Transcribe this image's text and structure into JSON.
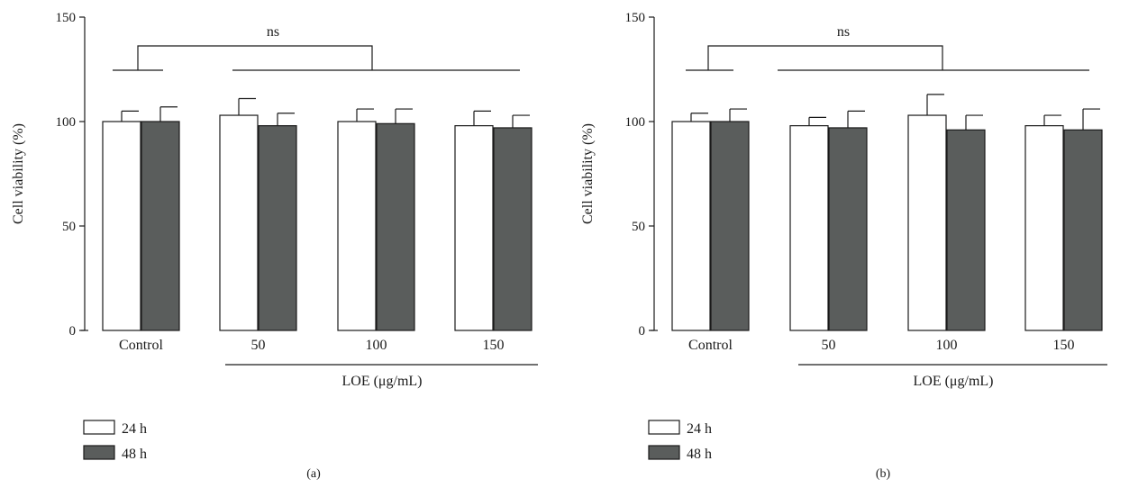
{
  "chart_data": [
    {
      "type": "bar",
      "panel_label": "(a)",
      "ylabel": "Cell viability (%)",
      "xlabel": "LOE (μg/mL)",
      "ylim": [
        0,
        150
      ],
      "yticks": [
        0,
        50,
        100,
        150
      ],
      "categories": [
        "Control",
        "50",
        "100",
        "150"
      ],
      "series": [
        {
          "name": "24 h",
          "values": [
            100,
            103,
            100,
            98
          ],
          "errors": [
            5,
            8,
            6,
            7
          ],
          "color": "#ffffff"
        },
        {
          "name": "48 h",
          "values": [
            100,
            98,
            99,
            97
          ],
          "errors": [
            7,
            6,
            7,
            6
          ],
          "color": "#5a5d5c"
        }
      ],
      "annotation": "ns",
      "legend_position": "bottom-left"
    },
    {
      "type": "bar",
      "panel_label": "(b)",
      "ylabel": "Cell viability (%)",
      "xlabel": "LOE (μg/mL)",
      "ylim": [
        0,
        150
      ],
      "yticks": [
        0,
        50,
        100,
        150
      ],
      "categories": [
        "Control",
        "50",
        "100",
        "150"
      ],
      "series": [
        {
          "name": "24 h",
          "values": [
            100,
            98,
            103,
            98
          ],
          "errors": [
            4,
            4,
            10,
            5
          ],
          "color": "#ffffff"
        },
        {
          "name": "48 h",
          "values": [
            100,
            97,
            96,
            96
          ],
          "errors": [
            6,
            8,
            7,
            10
          ],
          "color": "#5a5d5c"
        }
      ],
      "annotation": "ns",
      "legend_position": "bottom-left"
    }
  ]
}
